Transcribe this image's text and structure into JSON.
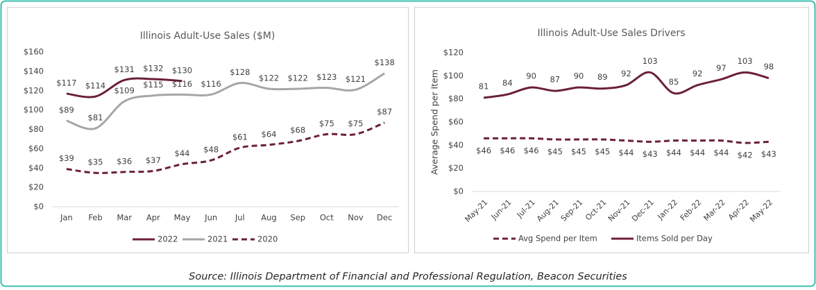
{
  "chart_data": [
    {
      "type": "line",
      "title": "Illinois Adult-Use Sales ($M)",
      "categories": [
        "Jan",
        "Feb",
        "Mar",
        "Apr",
        "May",
        "Jun",
        "Jul",
        "Aug",
        "Sep",
        "Oct",
        "Nov",
        "Dec"
      ],
      "series": [
        {
          "name": "2022",
          "color": "#6b1f3a",
          "line_style": "solid",
          "values": [
            117,
            114,
            131,
            132,
            130,
            null,
            null,
            null,
            null,
            null,
            null,
            null
          ],
          "value_labels": [
            "$117",
            "$114",
            "$131",
            "$132",
            "$130",
            null,
            null,
            null,
            null,
            null,
            null,
            null
          ]
        },
        {
          "name": "2021",
          "color": "#a6a6a6",
          "line_style": "solid",
          "values": [
            89,
            81,
            109,
            115,
            116,
            116,
            128,
            122,
            122,
            123,
            121,
            138
          ],
          "value_labels": [
            "$89",
            "$81",
            "$109",
            "$115",
            "$116",
            "$116",
            "$128",
            "$122",
            "$122",
            "$123",
            "$121",
            "$138"
          ]
        },
        {
          "name": "2020",
          "color": "#6b1f3a",
          "line_style": "dashed",
          "values": [
            39,
            35,
            36,
            37,
            44,
            48,
            61,
            64,
            68,
            75,
            75,
            87
          ],
          "value_labels": [
            "$39",
            "$35",
            "$36",
            "$37",
            "$44",
            "$48",
            "$61",
            "$64",
            "$68",
            "$75",
            "$75",
            "$87"
          ]
        }
      ],
      "ylim": [
        0,
        160
      ],
      "yticks": [
        {
          "value": 0,
          "label": "$0"
        },
        {
          "value": 20,
          "label": "$20"
        },
        {
          "value": 40,
          "label": "$40"
        },
        {
          "value": 60,
          "label": "$60"
        },
        {
          "value": 80,
          "label": "$80"
        },
        {
          "value": 100,
          "label": "$100"
        },
        {
          "value": 120,
          "label": "$120"
        },
        {
          "value": 140,
          "label": "$140"
        },
        {
          "value": 160,
          "label": "$160"
        }
      ],
      "grid": false,
      "legend": "bottom"
    },
    {
      "type": "line",
      "title": "Illinois Adult-Use Sales Drivers",
      "y_label": "Average Spend per Item",
      "categories": [
        "May-21",
        "Jun-21",
        "Jul-21",
        "Aug-21",
        "Sep-21",
        "Oct-21",
        "Nov-21",
        "Dec-21",
        "Jan-22",
        "Feb-22",
        "Mar-22",
        "Apr-22",
        "May-22"
      ],
      "series": [
        {
          "name": "Avg Spend per Item",
          "color": "#6b1f3a",
          "line_style": "dashed",
          "values": [
            46,
            46,
            46,
            45,
            45,
            45,
            44,
            43,
            44,
            44,
            44,
            42,
            43
          ],
          "value_labels": [
            "$46",
            "$46",
            "$46",
            "$45",
            "$45",
            "$45",
            "$44",
            "$43",
            "$44",
            "$44",
            "$44",
            "$42",
            "$43"
          ]
        },
        {
          "name": "Items Sold per Day",
          "color": "#6b1f3a",
          "line_style": "solid",
          "values": [
            81,
            84,
            90,
            87,
            90,
            89,
            92,
            103,
            85,
            92,
            97,
            103,
            98
          ]
        }
      ],
      "ylim": [
        0,
        120
      ],
      "yticks": [
        {
          "value": 0,
          "label": "$0"
        },
        {
          "value": 20,
          "label": "$20"
        },
        {
          "value": 40,
          "label": "$40"
        },
        {
          "value": 60,
          "label": "$60"
        },
        {
          "value": 80,
          "label": "$80"
        },
        {
          "value": 100,
          "label": "$100"
        },
        {
          "value": 120,
          "label": "$120"
        }
      ],
      "grid": false,
      "legend": "bottom"
    }
  ],
  "source": "Source: Illinois Department of Financial and Professional Regulation, Beacon Securities"
}
